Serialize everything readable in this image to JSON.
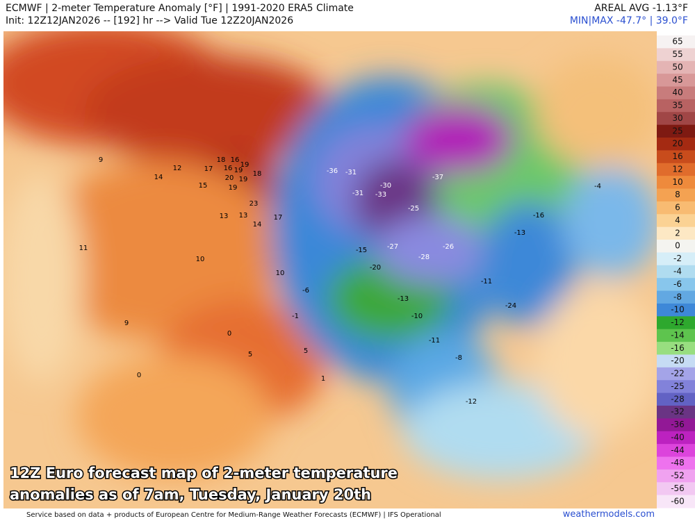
{
  "header": {
    "title": "ECMWF | 2-meter Temperature Anomaly [°F] | 1991-2020 ERA5 Climate",
    "init": "Init: 12Z12JAN2026 -- [192] hr --> Valid Tue 12Z20JAN2026",
    "areal_avg": "AREAL AVG -1.13°F",
    "min_max": "MIN|MAX -47.7° | 39.0°F"
  },
  "caption": [
    "12Z Euro forecast map of 2-meter temperature",
    "anomalies as of 7am, Tuesday, January 20th"
  ],
  "footer": {
    "credit": "Service based on data + products of European Centre for Medium-Range Weather Forecasts (ECMWF) | IFS Operational",
    "site": "weathermodels.com"
  },
  "colorbar": {
    "levels": [
      65,
      55,
      50,
      45,
      40,
      35,
      30,
      25,
      20,
      16,
      12,
      10,
      8,
      6,
      4,
      2,
      0,
      -2,
      -4,
      -6,
      -8,
      -10,
      -12,
      -14,
      -16,
      -20,
      -22,
      -25,
      -28,
      -32,
      -36,
      -40,
      -44,
      -48,
      -52,
      -56,
      -60
    ],
    "colors": [
      "#f6f2f2",
      "#eed2d2",
      "#e4b4b4",
      "#d89898",
      "#c87c7c",
      "#b86262",
      "#a04646",
      "#7e1a12",
      "#a42a12",
      "#c84c1c",
      "#e06c2c",
      "#ee8a3c",
      "#f4a252",
      "#f8bb72",
      "#fbd294",
      "#fde8c4",
      "#f4f4f0",
      "#d6eef8",
      "#b0dcf0",
      "#88c6ec",
      "#62a8e2",
      "#3e88d8",
      "#2ea82e",
      "#5ec44e",
      "#98de80",
      "#c6dcf4",
      "#a4a4e8",
      "#8282da",
      "#6262c4",
      "#6a3484",
      "#921896",
      "#bc22c0",
      "#dc44dc",
      "#ee72ee",
      "#f0a2f0",
      "#f2c8f2",
      "#f8e6f8"
    ]
  },
  "map_labels": [
    18,
    16,
    19,
    17,
    16,
    19,
    18,
    20,
    19,
    15,
    19,
    23,
    17,
    13,
    13,
    14,
    12,
    14,
    9,
    11,
    9,
    10,
    10,
    -36,
    -31,
    -31,
    -33,
    -30,
    -37,
    -25,
    -27,
    -28,
    -26,
    -15,
    -20,
    -13,
    -10,
    -11,
    -8,
    -12,
    -13,
    -11,
    -24,
    -16,
    -4,
    -6,
    -1,
    0,
    5,
    5,
    1,
    0
  ]
}
